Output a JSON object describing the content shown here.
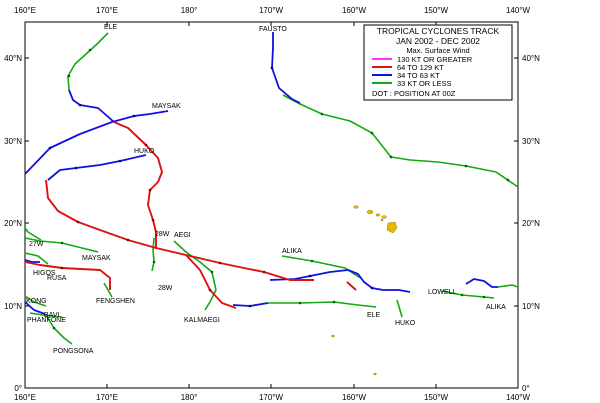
{
  "legend": {
    "title": "TROPICAL CYCLONES TRACK",
    "period": "JAN 2002  -  DEC 2002",
    "subtitle": "Max. Surface Wind",
    "items": [
      {
        "label": "130 KT OR GREATER",
        "color": "#ff33ff"
      },
      {
        "label": "64  TO  129 KT",
        "color": "#dd1111"
      },
      {
        "label": "34  TO  63 KT",
        "color": "#1111dd"
      },
      {
        "label": "33 KT OR LESS",
        "color": "#11aa11"
      }
    ],
    "note": "DOT : POSITION AT 00Z"
  },
  "axes": {
    "x_ticks_top": [
      "160°E",
      "170°E",
      "180°",
      "170°W",
      "160°W",
      "150°W",
      "140°W"
    ],
    "x_ticks_bottom": [
      "160°E",
      "170°E",
      "180°",
      "170°W",
      "160°W",
      "150°W",
      "140°W"
    ],
    "y_ticks_left": [
      "40°N",
      "30°N",
      "20°N",
      "10°N",
      "0°"
    ],
    "y_ticks_right": [
      "40°N",
      "30°N",
      "20°N",
      "10°N",
      "0°"
    ]
  },
  "storm_labels": {
    "ele_top": "ELE",
    "fausto": "FAUSTO",
    "maysak_top": "MAYSAK",
    "huko_top": "HUKO",
    "w28_top": "28W",
    "aegi": "AEGI",
    "alika_mid": "ALIKA",
    "w27": "27W",
    "maysak_mid": "MAYSAK",
    "higos": "HIGOS",
    "ruga": "RUSA",
    "fengshen": "FENGSHEN",
    "w28_bottom": "28W",
    "kalmaegi": "KALMAEGI",
    "ele_bottom": "ELE",
    "huko_bottom": "HUKO",
    "lowell": "LOWELL",
    "alika_right": "ALIKA",
    "kong": "KONG",
    "bavi": "BAVI",
    "phanfone": "PHANFONE",
    "pongsona": "PONGSONA"
  },
  "colors": {
    "ge130": "#ff33ff",
    "ge64": "#dd1111",
    "ge34": "#1111dd",
    "le33": "#11aa11",
    "land": "#e6b800"
  }
}
